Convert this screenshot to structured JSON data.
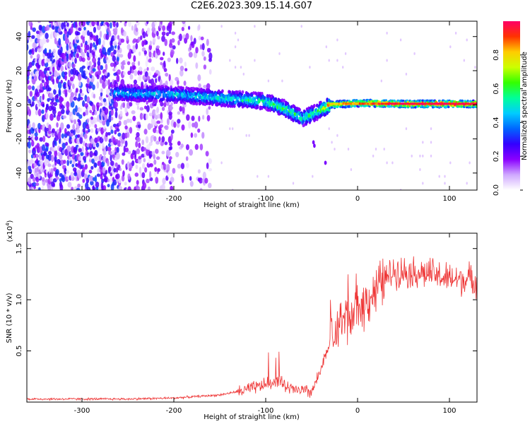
{
  "title": "C2E6.2023.309.15.14.G07",
  "chart_data": [
    {
      "type": "heatmap",
      "xlabel": "Height of straight line (km)",
      "ylabel": "Frequency (Hz)",
      "xlim": [
        -360,
        130
      ],
      "ylim": [
        -50,
        49
      ],
      "xticks": [
        -300,
        -200,
        -100,
        0,
        100
      ],
      "yticks": [
        -40,
        -20,
        0,
        20,
        40
      ],
      "colorbar": {
        "label": "Normalized spectral amplitude",
        "range": [
          0,
          1
        ],
        "ticks": [
          0.0,
          0.2,
          0.4,
          0.6,
          0.8
        ],
        "colors": [
          "#ffffff",
          "#cfa8ff",
          "#8a00ff",
          "#3300ff",
          "#0066ff",
          "#00ccff",
          "#00ff99",
          "#33ff00",
          "#ccff00",
          "#ffcc00",
          "#ff3300",
          "#ff0066"
        ]
      },
      "ridge": {
        "description_points_height_km": [
          -260,
          -200,
          -150,
          -100,
          -80,
          -60,
          -40,
          -30,
          0,
          50,
          100,
          130
        ],
        "frequency_hz": [
          7,
          6,
          4,
          2,
          -2,
          -8,
          -3,
          0,
          1,
          0.5,
          0.5,
          0.5
        ],
        "amplitude": [
          0.35,
          0.35,
          0.4,
          0.45,
          0.5,
          0.45,
          0.5,
          0.8,
          0.9,
          1.0,
          1.0,
          1.0
        ]
      }
    },
    {
      "type": "line",
      "xlabel": "Height of straight line (km)",
      "ylabel": "SNR (10 * v/v)",
      "yscale_label": "(x10",
      "yscale_exp": "4",
      "yscale_close": ")",
      "xlim": [
        -360,
        130
      ],
      "ylim": [
        0,
        1.65
      ],
      "xticks": [
        -300,
        -200,
        -100,
        0,
        100
      ],
      "yticks": [
        0.5,
        1.0,
        1.5
      ],
      "ytick_labels": [
        "0.5",
        "1.0",
        "1.5"
      ],
      "color": "#ee3333",
      "trend": {
        "x": [
          -360,
          -250,
          -200,
          -150,
          -120,
          -100,
          -85,
          -80,
          -70,
          -50,
          -40,
          -30,
          -20,
          -10,
          0,
          10,
          20,
          30,
          40,
          60,
          80,
          100,
          130
        ],
        "y": [
          0.03,
          0.03,
          0.04,
          0.07,
          0.12,
          0.17,
          0.22,
          0.15,
          0.12,
          0.1,
          0.3,
          0.6,
          0.75,
          0.8,
          0.9,
          1.0,
          1.1,
          1.2,
          1.28,
          1.27,
          1.25,
          1.2,
          1.2
        ]
      }
    }
  ]
}
